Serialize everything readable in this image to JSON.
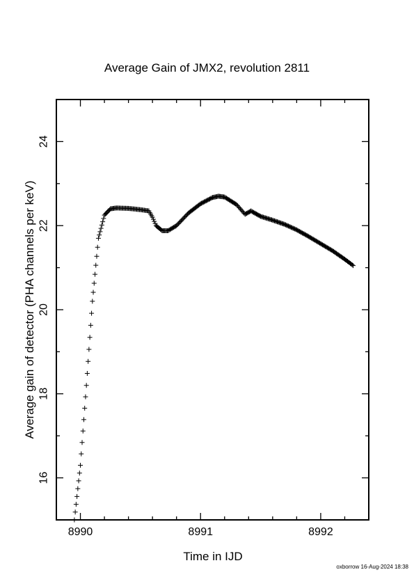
{
  "chart_data": {
    "type": "scatter",
    "title": "Average Gain of JMX2, revolution 2811",
    "xlabel": "Time in IJD",
    "ylabel": "Average gain of detector (PHA channels per keV)",
    "xlim": [
      8989.8,
      8992.4
    ],
    "ylim": [
      15.0,
      25.0
    ],
    "x_ticks": [
      8990,
      8991,
      8992
    ],
    "y_ticks": [
      16,
      18,
      20,
      22,
      24
    ],
    "marker": "+",
    "grid": false,
    "series": [
      {
        "values": [
          {
            "x": 8989.95,
            "y": 15.0
          },
          {
            "x": 8990.0,
            "y": 16.3
          },
          {
            "x": 8990.05,
            "y": 18.2
          },
          {
            "x": 8990.1,
            "y": 20.2
          },
          {
            "x": 8990.15,
            "y": 21.7
          },
          {
            "x": 8990.2,
            "y": 22.25
          },
          {
            "x": 8990.25,
            "y": 22.4
          },
          {
            "x": 8990.3,
            "y": 22.42
          },
          {
            "x": 8990.4,
            "y": 22.41
          },
          {
            "x": 8990.5,
            "y": 22.38
          },
          {
            "x": 8990.57,
            "y": 22.35
          },
          {
            "x": 8990.6,
            "y": 22.2
          },
          {
            "x": 8990.63,
            "y": 22.0
          },
          {
            "x": 8990.68,
            "y": 21.88
          },
          {
            "x": 8990.73,
            "y": 21.88
          },
          {
            "x": 8990.8,
            "y": 22.0
          },
          {
            "x": 8990.9,
            "y": 22.3
          },
          {
            "x": 8991.0,
            "y": 22.52
          },
          {
            "x": 8991.1,
            "y": 22.67
          },
          {
            "x": 8991.15,
            "y": 22.7
          },
          {
            "x": 8991.2,
            "y": 22.68
          },
          {
            "x": 8991.3,
            "y": 22.5
          },
          {
            "x": 8991.37,
            "y": 22.27
          },
          {
            "x": 8991.42,
            "y": 22.35
          },
          {
            "x": 8991.45,
            "y": 22.3
          },
          {
            "x": 8991.5,
            "y": 22.22
          },
          {
            "x": 8991.6,
            "y": 22.13
          },
          {
            "x": 8991.7,
            "y": 22.03
          },
          {
            "x": 8991.8,
            "y": 21.9
          },
          {
            "x": 8991.9,
            "y": 21.74
          },
          {
            "x": 8992.0,
            "y": 21.57
          },
          {
            "x": 8992.1,
            "y": 21.4
          },
          {
            "x": 8992.2,
            "y": 21.2
          },
          {
            "x": 8992.27,
            "y": 21.05
          }
        ]
      }
    ]
  },
  "footer": "oxborrow 16-Aug-2024 18:38"
}
